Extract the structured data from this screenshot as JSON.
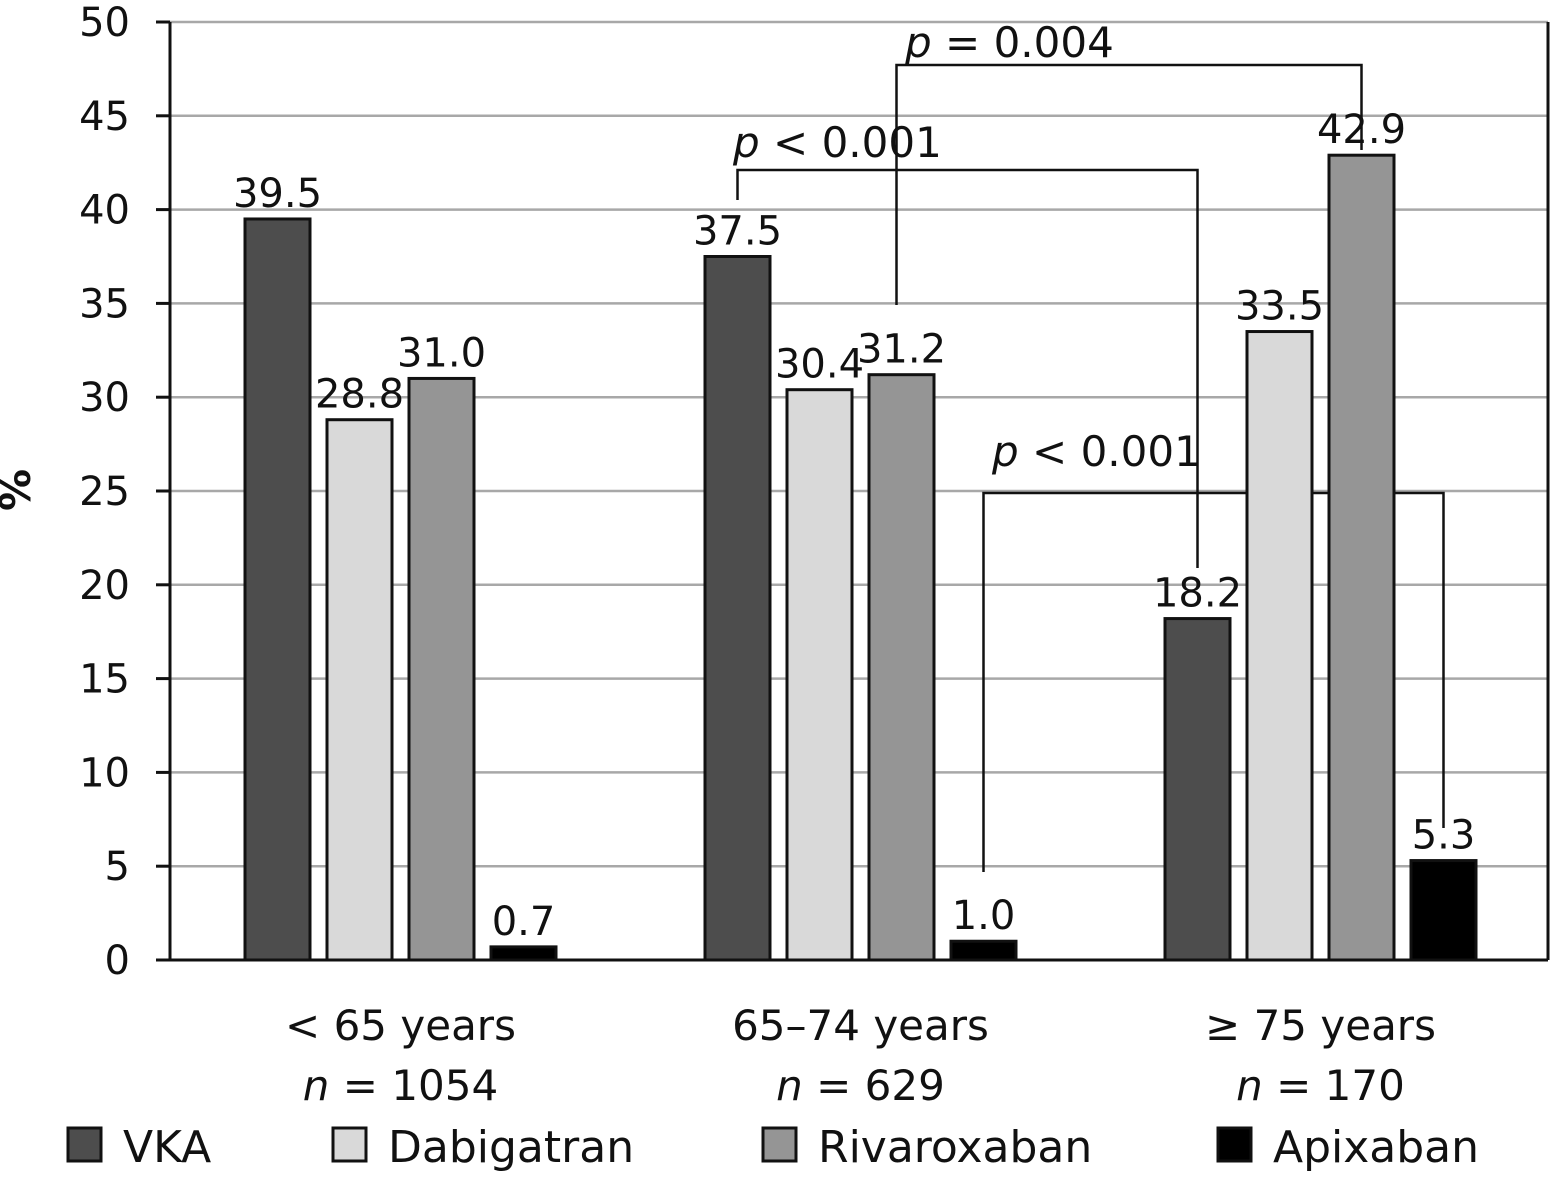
{
  "chart_data": {
    "type": "bar",
    "ylabel": "%",
    "ylim": [
      0,
      50
    ],
    "yticks": [
      0,
      5,
      10,
      15,
      20,
      25,
      30,
      35,
      40,
      45,
      50
    ],
    "grid": true,
    "legend_position": "bottom",
    "categories": [
      {
        "label": "< 65 years",
        "n_label": "n = 1054"
      },
      {
        "label": "65–74 years",
        "n_label": "n = 629"
      },
      {
        "label": "≥ 75 years",
        "n_label": "n = 170"
      }
    ],
    "series": [
      {
        "name": "VKA",
        "color": "#4d4d4d",
        "values": [
          39.5,
          37.5,
          18.2
        ],
        "labels": [
          "39.5",
          "37.5",
          "18.2"
        ]
      },
      {
        "name": "Dabigatran",
        "color": "#d9d9d9",
        "values": [
          28.8,
          30.4,
          33.5
        ],
        "labels": [
          "28.8",
          "30.4",
          "33.5"
        ]
      },
      {
        "name": "Rivaroxaban",
        "color": "#959595",
        "values": [
          31.0,
          31.2,
          42.9
        ],
        "labels": [
          "31.0",
          "31.2",
          "42.9"
        ]
      },
      {
        "name": "Apixaban",
        "color": "#000000",
        "values": [
          0.7,
          1.0,
          5.3
        ],
        "labels": [
          "0.7",
          "1.0",
          "5.3"
        ]
      }
    ],
    "annotations": [
      {
        "p_symbol": "p",
        "p_rest": " = 0.004",
        "from": {
          "category": 1,
          "series": 2
        },
        "to": {
          "category": 2,
          "series": 2
        }
      },
      {
        "p_symbol": "p",
        "p_rest": " < 0.001",
        "from": {
          "category": 1,
          "series": 0
        },
        "to": {
          "category": 2,
          "series": 0
        }
      },
      {
        "p_symbol": "p",
        "p_rest": " < 0.001",
        "from": {
          "category": 1,
          "series": 3
        },
        "to": {
          "category": 2,
          "series": 3
        }
      }
    ]
  }
}
